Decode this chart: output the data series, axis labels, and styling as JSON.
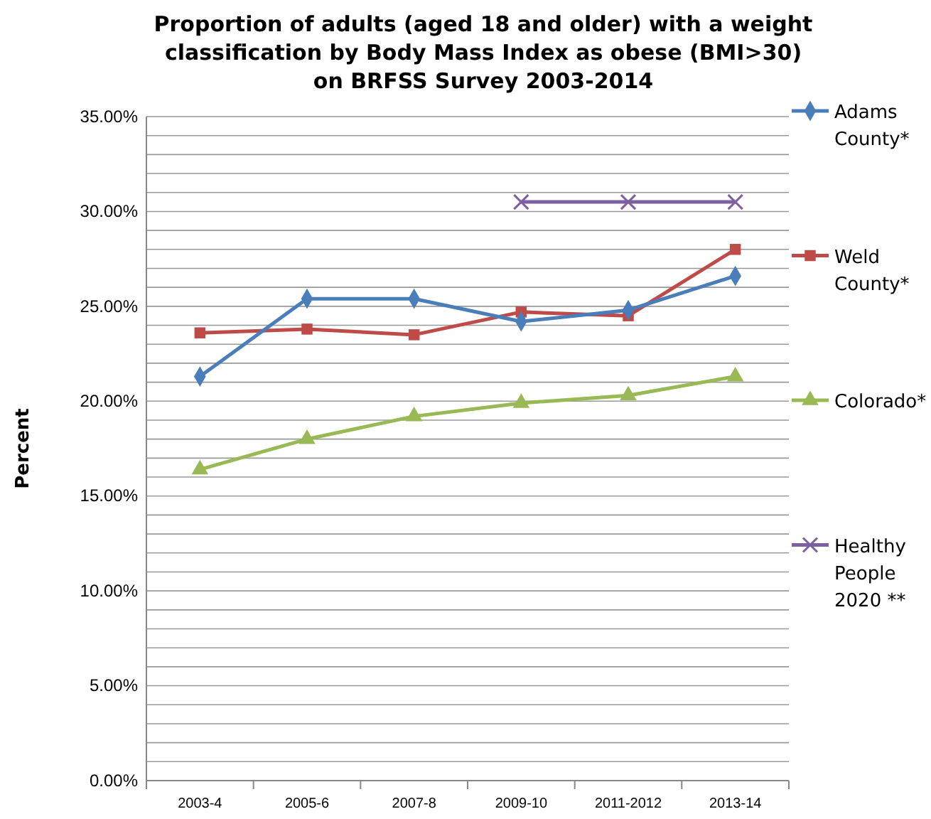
{
  "chart_data": {
    "type": "line",
    "title": "Proportion of adults (aged 18 and older) with a weight classification by Body Mass Index as obese (BMI>30) on BRFSS Survey 2003-2014",
    "ylabel": "Percent",
    "categories": [
      "2003-4",
      "2005-6",
      "2007-8",
      "2009-10",
      "2011-2012",
      "2013-14"
    ],
    "series": [
      {
        "name": "Adams County*",
        "color": "#4a7ebb",
        "marker": "diamond",
        "values": [
          21.3,
          25.4,
          25.4,
          24.2,
          24.8,
          26.6
        ]
      },
      {
        "name": "Weld County*",
        "color": "#be4b48",
        "marker": "square",
        "values": [
          23.6,
          23.8,
          23.5,
          24.7,
          24.5,
          28.0
        ]
      },
      {
        "name": "Colorado*",
        "color": "#98b954",
        "marker": "triangle",
        "values": [
          16.4,
          18.0,
          19.2,
          19.9,
          20.3,
          21.3
        ]
      },
      {
        "name": "Healthy People 2020 **",
        "color": "#7d60a0",
        "marker": "cross",
        "values": [
          null,
          null,
          null,
          30.5,
          30.5,
          30.5
        ]
      }
    ],
    "ylim": [
      0,
      35
    ],
    "yticks": [
      {
        "value": 0,
        "label": "0.00%"
      },
      {
        "value": 1,
        "label": null
      },
      {
        "value": 2,
        "label": null
      },
      {
        "value": 3,
        "label": null
      },
      {
        "value": 4,
        "label": null
      },
      {
        "value": 5,
        "label": "5.00%"
      },
      {
        "value": 6,
        "label": null
      },
      {
        "value": 7,
        "label": null
      },
      {
        "value": 8,
        "label": null
      },
      {
        "value": 9,
        "label": null
      },
      {
        "value": 10,
        "label": "10.00%"
      },
      {
        "value": 11,
        "label": null
      },
      {
        "value": 12,
        "label": null
      },
      {
        "value": 13,
        "label": null
      },
      {
        "value": 14,
        "label": null
      },
      {
        "value": 15,
        "label": "15.00%"
      },
      {
        "value": 16,
        "label": null
      },
      {
        "value": 17,
        "label": null
      },
      {
        "value": 18,
        "label": null
      },
      {
        "value": 19,
        "label": null
      },
      {
        "value": 20,
        "label": "20.00%"
      },
      {
        "value": 21,
        "label": null
      },
      {
        "value": 22,
        "label": null
      },
      {
        "value": 23,
        "label": null
      },
      {
        "value": 24,
        "label": null
      },
      {
        "value": 25,
        "label": "25.00%"
      },
      {
        "value": 26,
        "label": null
      },
      {
        "value": 27,
        "label": null
      },
      {
        "value": 28,
        "label": null
      },
      {
        "value": 29,
        "label": null
      },
      {
        "value": 30,
        "label": "30.00%"
      },
      {
        "value": 31,
        "label": null
      },
      {
        "value": 32,
        "label": null
      },
      {
        "value": 33,
        "label": null
      },
      {
        "value": 34,
        "label": null
      },
      {
        "value": 35,
        "label": "35.00%"
      }
    ],
    "grid": "y",
    "legend": "right",
    "line_style": "solid"
  }
}
